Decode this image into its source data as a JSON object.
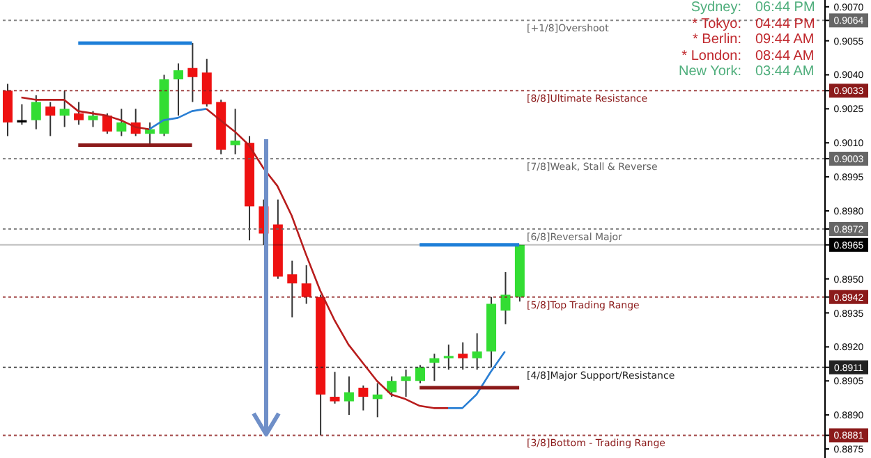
{
  "chart_data": {
    "type": "candlestick",
    "categories": [
      null,
      null,
      null,
      null,
      null,
      null,
      null,
      null,
      null,
      null,
      null,
      null,
      null,
      null,
      null,
      null,
      null,
      null,
      null,
      null,
      null,
      null,
      null,
      null,
      null,
      null,
      null,
      null,
      null,
      null,
      null,
      null,
      null,
      null,
      null,
      null,
      null,
      null,
      null,
      null,
      null,
      null,
      null,
      null,
      null,
      null,
      null,
      null,
      null,
      null,
      null,
      null,
      null,
      null,
      null,
      null,
      null,
      null
    ],
    "ylim": [
      0.8871,
      0.9073
    ],
    "yticks": [
      {
        "value": 0.8875,
        "label": "0.8875"
      },
      {
        "value": 0.8881,
        "label": "0.8881"
      },
      {
        "value": 0.889,
        "label": "0.8890"
      },
      {
        "value": 0.8905,
        "label": "0.8905"
      },
      {
        "value": 0.8911,
        "label": "0.8911"
      },
      {
        "value": 0.892,
        "label": "0.8920"
      },
      {
        "value": 0.8935,
        "label": "0.8935"
      },
      {
        "value": 0.8942,
        "label": "0.8942"
      },
      {
        "value": 0.895,
        "label": "0.8950"
      },
      {
        "value": 0.8965,
        "label": "0.8965"
      },
      {
        "value": 0.8972,
        "label": "0.8972"
      },
      {
        "value": 0.898,
        "label": "0.8980"
      },
      {
        "value": 0.8995,
        "label": "0.8995"
      },
      {
        "value": 0.9003,
        "label": "0.9003"
      },
      {
        "value": 0.901,
        "label": "0.9010"
      },
      {
        "value": 0.9025,
        "label": "0.9025"
      },
      {
        "value": 0.9033,
        "label": "0.9033"
      },
      {
        "value": 0.904,
        "label": "0.9040"
      },
      {
        "value": 0.9055,
        "label": "0.9055"
      },
      {
        "value": 0.9064,
        "label": "0.9064"
      },
      {
        "value": 0.907,
        "label": "0.9070"
      }
    ],
    "tick_labels": "y",
    "ohlc": [
      [
        0.9033,
        0.9036,
        0.9013,
        0.9019
      ],
      [
        0.902,
        0.9027,
        0.9018,
        0.9019
      ],
      [
        0.902,
        0.9031,
        0.9016,
        0.9028
      ],
      [
        0.9026,
        0.9028,
        0.9013,
        0.9022
      ],
      [
        0.9022,
        0.9033,
        0.9017,
        0.9025
      ],
      [
        0.9023,
        0.9028,
        0.9018,
        0.902
      ],
      [
        0.902,
        0.9024,
        0.9017,
        0.9022
      ],
      [
        0.9022,
        0.9023,
        0.9014,
        0.9015
      ],
      [
        0.9015,
        0.9025,
        0.9013,
        0.9019
      ],
      [
        0.9019,
        0.9025,
        0.9013,
        0.9014
      ],
      [
        0.9014,
        0.9019,
        0.9009,
        0.9016
      ],
      [
        0.9014,
        0.904,
        0.9013,
        0.9038
      ],
      [
        0.9038,
        0.9045,
        0.9022,
        0.9042
      ],
      [
        0.9043,
        0.9054,
        0.9028,
        0.9039
      ],
      [
        0.9041,
        0.9047,
        0.9026,
        0.9027
      ],
      [
        0.9028,
        0.9029,
        0.9005,
        0.9007
      ],
      [
        0.9009,
        0.9025,
        0.9005,
        0.9011
      ],
      [
        0.901,
        0.9013,
        0.8967,
        0.8982
      ],
      [
        0.8982,
        0.8985,
        0.8965,
        0.897
      ],
      [
        0.8974,
        0.8985,
        0.895,
        0.8951
      ],
      [
        0.8952,
        0.8958,
        0.8933,
        0.8948
      ],
      [
        0.8948,
        0.8956,
        0.8939,
        0.8942
      ],
      [
        0.8942,
        0.8943,
        0.8881,
        0.8899
      ],
      [
        0.8898,
        0.8909,
        0.8895,
        0.8896
      ],
      [
        0.8896,
        0.8907,
        0.889,
        0.89
      ],
      [
        0.8902,
        0.8903,
        0.8892,
        0.8898
      ],
      [
        0.8897,
        0.8904,
        0.8889,
        0.8899
      ],
      [
        0.89,
        0.8907,
        0.8898,
        0.8905
      ],
      [
        0.8905,
        0.891,
        0.8898,
        0.8907
      ],
      [
        0.8905,
        0.8912,
        0.8904,
        0.8911
      ],
      [
        0.8913,
        0.8917,
        0.8905,
        0.8915
      ],
      [
        0.8915,
        0.8921,
        0.891,
        0.8916
      ],
      [
        0.8917,
        0.8922,
        0.891,
        0.8915
      ],
      [
        0.8915,
        0.8926,
        0.891,
        0.8918
      ],
      [
        0.8918,
        0.8942,
        0.8911,
        0.8939
      ],
      [
        0.8936,
        0.8953,
        0.893,
        0.8943
      ],
      [
        0.8942,
        0.8965,
        0.894,
        0.8965
      ],
      null,
      null,
      null,
      null,
      null,
      null,
      null,
      null,
      null,
      null,
      null,
      null,
      null,
      null,
      null,
      null,
      null,
      null,
      null,
      null,
      null
    ],
    "colors": [
      "#ee1111",
      "#000000",
      "#33dd33",
      "#ee1111",
      "#33dd33",
      "#ee1111",
      "#33dd33",
      "#ee1111",
      "#33dd33",
      "#ee1111",
      "#33dd33",
      "#33dd33",
      "#33dd33",
      "#ee1111",
      "#ee1111",
      "#ee1111",
      "#33dd33",
      "#ee1111",
      "#ee1111",
      "#ee1111",
      "#ee1111",
      "#ee1111",
      "#ee1111",
      "#ee1111",
      "#33dd33",
      "#ee1111",
      "#33dd33",
      "#33dd33",
      "#33dd33",
      "#33dd33",
      "#33dd33",
      "#33dd33",
      "#ee1111",
      "#33dd33",
      "#33dd33",
      "#33dd33",
      "#33dd33",
      null,
      null,
      null,
      null,
      null,
      null,
      null,
      null,
      null,
      null,
      null,
      null,
      null,
      null,
      null,
      null,
      null,
      null,
      null,
      null,
      null
    ],
    "series": [
      {
        "type": "line",
        "color": "#b81c1c",
        "values": [
          null,
          0.903,
          0.9029,
          0.9029,
          0.9029,
          0.9024,
          0.9023,
          0.9022,
          0.902,
          0.9017,
          0.9016,
          null,
          null,
          null,
          0.9025,
          0.902,
          0.9015,
          0.9009,
          0.8999,
          0.8991,
          0.8978,
          0.8961,
          0.8945,
          0.8932,
          0.8921,
          0.8913,
          0.8905,
          0.8899,
          0.8897,
          0.8894,
          0.8893,
          0.8893,
          null,
          null,
          null,
          null,
          null,
          null,
          null,
          null,
          null,
          null,
          null,
          null,
          null,
          null,
          null,
          null,
          null,
          null,
          null,
          null,
          null,
          null,
          null,
          null,
          null,
          null
        ]
      },
      {
        "type": "line",
        "color": "#2a7fd4",
        "values": [
          null,
          null,
          null,
          null,
          null,
          null,
          null,
          null,
          null,
          null,
          0.9016,
          0.902,
          0.9021,
          0.9024,
          0.9025,
          null,
          null,
          null,
          null,
          null,
          null,
          null,
          null,
          null,
          null,
          null,
          null,
          null,
          null,
          null,
          null,
          0.8893,
          0.8893,
          0.8899,
          0.8909,
          0.8918,
          null,
          null,
          null,
          null,
          null,
          null,
          null,
          null,
          null,
          null,
          null,
          null,
          null,
          null,
          null,
          null,
          null,
          null,
          null,
          null,
          null,
          null
        ]
      },
      {
        "type": "line",
        "color": "#1e7fd8",
        "values": [
          null,
          null,
          null,
          null,
          null,
          0.9054,
          0.9054,
          0.9054,
          0.9054,
          0.9054,
          0.9054,
          0.9054,
          0.9054,
          0.9054,
          null,
          null,
          null,
          null,
          null,
          null,
          null,
          null,
          null,
          null,
          null,
          null,
          null,
          null,
          null,
          0.8965,
          0.8965,
          0.8965,
          0.8965,
          0.8965,
          0.8965,
          0.8965,
          0.8965,
          null,
          null,
          null,
          null,
          null,
          null,
          null,
          null,
          null,
          null,
          null,
          null,
          null,
          null,
          null,
          null,
          null,
          null,
          null,
          null,
          null
        ]
      },
      {
        "type": "line",
        "color": "#8b1a1a",
        "values": [
          null,
          null,
          null,
          null,
          null,
          0.9009,
          0.9009,
          0.9009,
          0.9009,
          0.9009,
          0.9009,
          0.9009,
          0.9009,
          0.9009,
          null,
          null,
          null,
          null,
          null,
          null,
          null,
          null,
          null,
          null,
          null,
          null,
          null,
          null,
          null,
          0.8902,
          0.8902,
          0.8902,
          0.8902,
          0.8902,
          0.8902,
          0.8902,
          0.8902,
          null,
          null,
          null,
          null,
          null,
          null,
          null,
          null,
          null,
          null,
          null,
          null,
          null,
          null,
          null,
          null,
          null,
          null,
          null,
          null,
          null
        ]
      }
    ],
    "ref_lines": [
      {
        "axis": "y",
        "value": 0.9064,
        "label": "[+1/8]Overshoot",
        "color": "#666666",
        "line_style": "dotted"
      },
      {
        "axis": "y",
        "value": 0.9033,
        "label": "[8/8]Ultimate Resistance",
        "color": "#8b1a1a",
        "line_style": "dotted"
      },
      {
        "axis": "y",
        "value": 0.9003,
        "label": "[7/8]Weak, Stall & Reverse",
        "color": "#666666",
        "line_style": "dotted"
      },
      {
        "axis": "y",
        "value": 0.8972,
        "label": "[6/8]Reversal Major",
        "color": "#666666",
        "line_style": "dotted"
      },
      {
        "axis": "y",
        "value": 0.8965,
        "color": "#000000",
        "line_style": "solid"
      },
      {
        "axis": "y",
        "value": 0.8942,
        "label": "[5/8]Top Trading Range",
        "color": "#8b1a1a",
        "line_style": "dotted"
      },
      {
        "axis": "y",
        "value": 0.8911,
        "label": "[4/8]Major Support/Resistance",
        "color": "#222222",
        "line_style": "dotted"
      },
      {
        "axis": "y",
        "value": 0.8881,
        "label": "[3/8]Bottom - Trading Range",
        "color": "#8b1a1a",
        "line_style": "dotted"
      }
    ],
    "annotations": [
      "Sydney:",
      "06:44 PM",
      "* Tokyo:",
      "04:44 PM",
      "* Berlin:",
      "09:44 AM",
      "* London:",
      "08:44 AM",
      "New York:",
      "03:44 AM"
    ]
  }
}
